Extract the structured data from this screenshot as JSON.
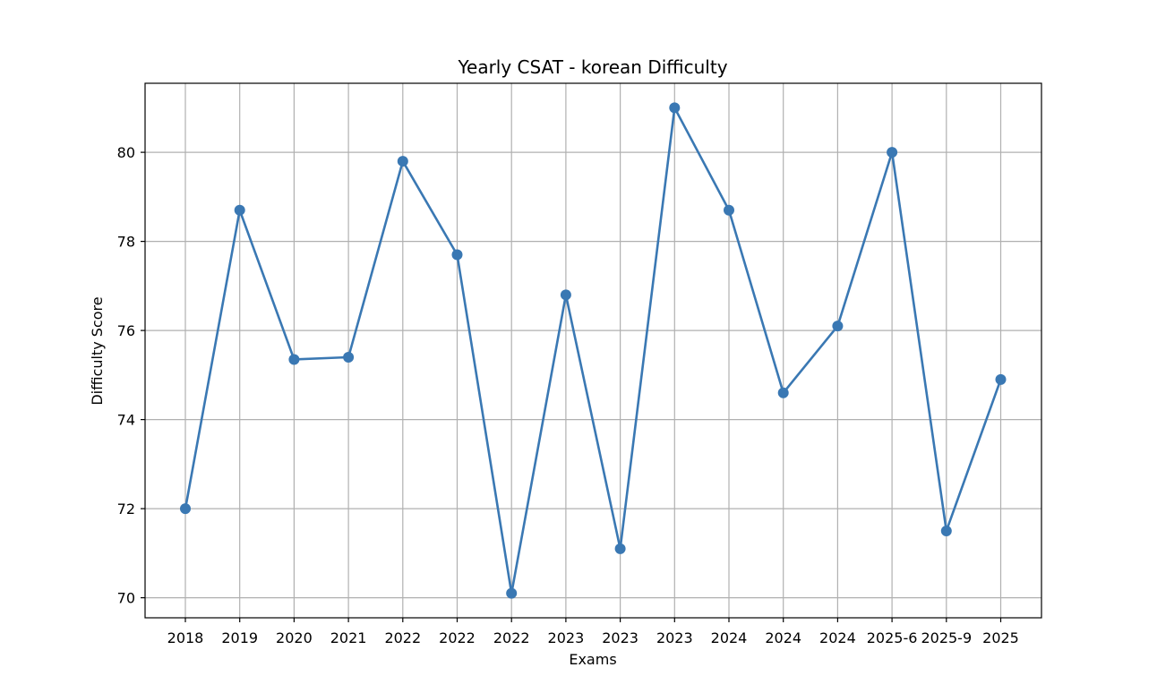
{
  "chart_data": {
    "type": "line",
    "title": "Yearly CSAT - korean Difficulty",
    "xlabel": "Exams",
    "ylabel": "Difficulty Score",
    "categories": [
      "2018",
      "2019",
      "2020",
      "2021",
      "2022",
      "2022",
      "2022",
      "2023",
      "2023",
      "2023",
      "2024",
      "2024",
      "2024",
      "2025-6",
      "2025-9",
      "2025"
    ],
    "series": [
      {
        "values": [
          72.0,
          78.7,
          75.35,
          75.4,
          79.8,
          77.7,
          70.1,
          76.8,
          71.1,
          81.0,
          78.7,
          74.6,
          76.1,
          80.0,
          71.5,
          74.9
        ]
      }
    ],
    "yticks": [
      70,
      72,
      74,
      76,
      78,
      80
    ],
    "ylim": [
      69.55,
      81.55
    ],
    "grid": true,
    "line_color": "#3a78b3",
    "marker": "circle"
  }
}
